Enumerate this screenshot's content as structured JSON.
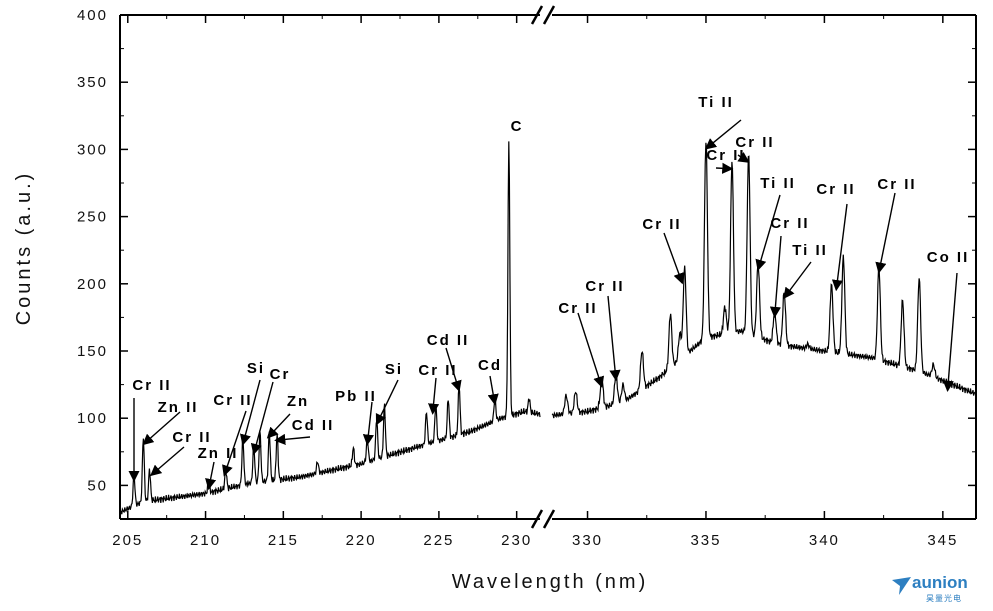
{
  "chart_data": {
    "type": "line",
    "title": "",
    "xlabel": "Wavelength (nm)",
    "ylabel": "Counts (a.u.)",
    "ylim": [
      25,
      400
    ],
    "y_ticks": [
      50,
      100,
      150,
      200,
      250,
      300,
      350,
      400
    ],
    "axis_break": "between 231 and 329 nm",
    "segments": [
      {
        "xlim": [
          204.5,
          231.5
        ],
        "x_ticks": [
          205,
          210,
          215,
          220,
          225,
          230
        ],
        "baseline": [
          [
            204.5,
            30
          ],
          [
            206,
            38
          ],
          [
            210,
            44
          ],
          [
            213,
            52
          ],
          [
            216,
            56
          ],
          [
            220,
            66
          ],
          [
            224,
            80
          ],
          [
            227,
            90
          ],
          [
            229,
            100
          ],
          [
            230.5,
            105
          ],
          [
            231.5,
            103
          ]
        ],
        "peaks": [
          [
            205.4,
            58
          ],
          [
            206,
            86
          ],
          [
            206.4,
            62
          ],
          [
            210.2,
            52
          ],
          [
            211.3,
            62
          ],
          [
            212.4,
            85
          ],
          [
            213.1,
            80
          ],
          [
            213.5,
            90
          ],
          [
            214.1,
            90
          ],
          [
            214.6,
            88
          ],
          [
            217.2,
            68
          ],
          [
            219.5,
            78
          ],
          [
            220.4,
            85
          ],
          [
            221,
            100
          ],
          [
            221.5,
            110
          ],
          [
            224.2,
            105
          ],
          [
            224.8,
            110
          ],
          [
            225.6,
            115
          ],
          [
            226.3,
            125
          ],
          [
            228.6,
            115
          ],
          [
            229.5,
            307
          ],
          [
            230.8,
            115
          ]
        ]
      },
      {
        "xlim": [
          328.5,
          346.4
        ],
        "x_ticks": [
          330,
          335,
          340,
          345
        ],
        "baseline": [
          [
            328.5,
            102
          ],
          [
            330,
            105
          ],
          [
            331.5,
            112
          ],
          [
            333,
            130
          ],
          [
            334,
            145
          ],
          [
            335,
            160
          ],
          [
            336.5,
            165
          ],
          [
            338,
            155
          ],
          [
            340,
            150
          ],
          [
            342,
            145
          ],
          [
            344,
            135
          ],
          [
            346.4,
            118
          ]
        ],
        "peaks": [
          [
            329.1,
            117
          ],
          [
            329.5,
            120
          ],
          [
            330.6,
            130
          ],
          [
            331.2,
            133
          ],
          [
            331.5,
            125
          ],
          [
            332.3,
            150
          ],
          [
            333.5,
            178
          ],
          [
            333.9,
            163
          ],
          [
            334.1,
            212
          ],
          [
            335,
            307
          ],
          [
            335.8,
            183
          ],
          [
            336.1,
            292
          ],
          [
            336.8,
            297
          ],
          [
            337.2,
            215
          ],
          [
            337.9,
            180
          ],
          [
            338.3,
            194
          ],
          [
            339.3,
            155
          ],
          [
            340.3,
            200
          ],
          [
            340.8,
            220
          ],
          [
            342.3,
            213
          ],
          [
            343.3,
            188
          ],
          [
            344,
            205
          ],
          [
            344.6,
            140
          ]
        ]
      }
    ],
    "annotations": [
      {
        "text": "C",
        "target": [
          229.5,
          307
        ]
      },
      {
        "text": "Cr II",
        "target": [
          205.4,
          58
        ]
      },
      {
        "text": "Zn II",
        "target": [
          206,
          85
        ]
      },
      {
        "text": "Cr II",
        "target": [
          206.5,
          62
        ]
      },
      {
        "text": "Zn II",
        "target": [
          210.2,
          52
        ]
      },
      {
        "text": "Cr II",
        "target": [
          211.2,
          62
        ]
      },
      {
        "text": "Si",
        "target": [
          212.4,
          85
        ]
      },
      {
        "text": "Cr",
        "target": [
          213.1,
          78
        ]
      },
      {
        "text": "Zn",
        "target": [
          214,
          90
        ]
      },
      {
        "text": "Cd II",
        "target": [
          214.5,
          88
        ]
      },
      {
        "text": "Pb II",
        "target": [
          220.4,
          85
        ]
      },
      {
        "text": "Si",
        "target": [
          221,
          100
        ]
      },
      {
        "text": "Cr II",
        "target": [
          224.6,
          108
        ]
      },
      {
        "text": "Cd II",
        "target": [
          226.3,
          125
        ]
      },
      {
        "text": "Cd",
        "target": [
          228.6,
          115
        ]
      },
      {
        "text": "Cr II",
        "target": [
          330.6,
          128
        ]
      },
      {
        "text": "Cr II",
        "target": [
          331.2,
          133
        ]
      },
      {
        "text": "Cr II",
        "target": [
          334,
          205
        ]
      },
      {
        "text": "Ti II",
        "target": [
          335,
          305
        ]
      },
      {
        "text": "Cr II",
        "target": [
          336.1,
          290
        ]
      },
      {
        "text": "Cr II",
        "target": [
          336.8,
          295
        ]
      },
      {
        "text": "Ti II",
        "target": [
          337.2,
          215
        ]
      },
      {
        "text": "Cr II",
        "target": [
          337.9,
          180
        ]
      },
      {
        "text": "Ti II",
        "target": [
          338.3,
          194
        ]
      },
      {
        "text": "Cr II",
        "target": [
          340.5,
          200
        ]
      },
      {
        "text": "Cr II",
        "target": [
          342.3,
          213
        ]
      },
      {
        "text": "Co II",
        "target": [
          345.2,
          125
        ]
      }
    ]
  },
  "logo": {
    "word": "aunion",
    "subtitle": "昊量光电"
  }
}
